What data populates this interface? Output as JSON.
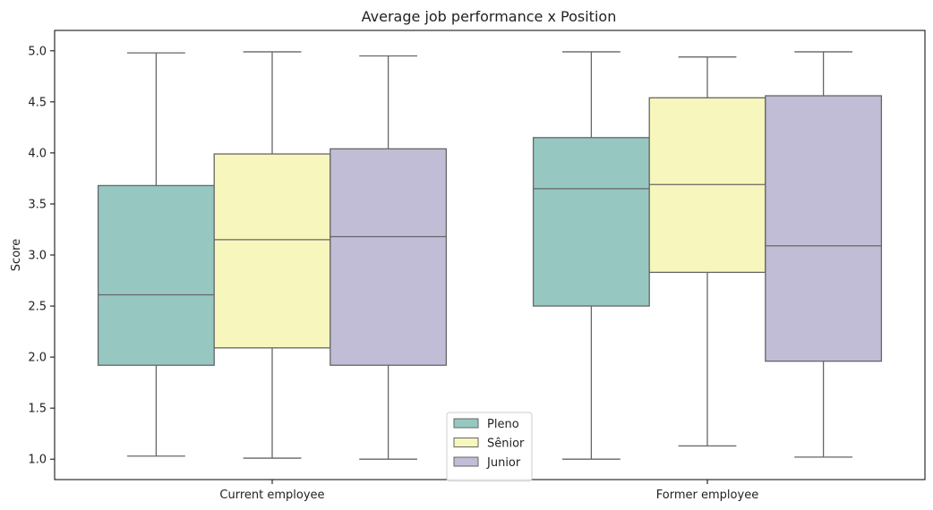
{
  "chart_data": {
    "type": "box",
    "title": "Average job performance x Position",
    "xlabel": "",
    "ylabel": "Score",
    "categories": [
      "Current employee",
      "Former employee"
    ],
    "ylim": [
      0.8,
      5.2
    ],
    "yticks": [
      "1.0",
      "1.5",
      "2.0",
      "2.5",
      "3.0",
      "3.5",
      "4.0",
      "4.5",
      "5.0"
    ],
    "legend_position": "bottom-center",
    "series": [
      {
        "name": "Pleno",
        "color": "#96c8c1",
        "boxes": [
          {
            "min": 1.03,
            "q1": 1.92,
            "median": 2.61,
            "q3": 3.68,
            "max": 4.98
          },
          {
            "min": 1.0,
            "q1": 2.5,
            "median": 3.65,
            "q3": 4.15,
            "max": 4.99
          }
        ]
      },
      {
        "name": "Sênior",
        "color": "#f6f6bd",
        "boxes": [
          {
            "min": 1.01,
            "q1": 2.09,
            "median": 3.15,
            "q3": 3.99,
            "max": 4.99
          },
          {
            "min": 1.13,
            "q1": 2.83,
            "median": 3.69,
            "q3": 4.54,
            "max": 4.94
          }
        ]
      },
      {
        "name": "Junior",
        "color": "#c1bdd6",
        "boxes": [
          {
            "min": 1.0,
            "q1": 1.92,
            "median": 3.18,
            "q3": 4.04,
            "max": 4.95
          },
          {
            "min": 1.02,
            "q1": 1.96,
            "median": 3.09,
            "q3": 4.56,
            "max": 4.99
          }
        ]
      }
    ]
  }
}
